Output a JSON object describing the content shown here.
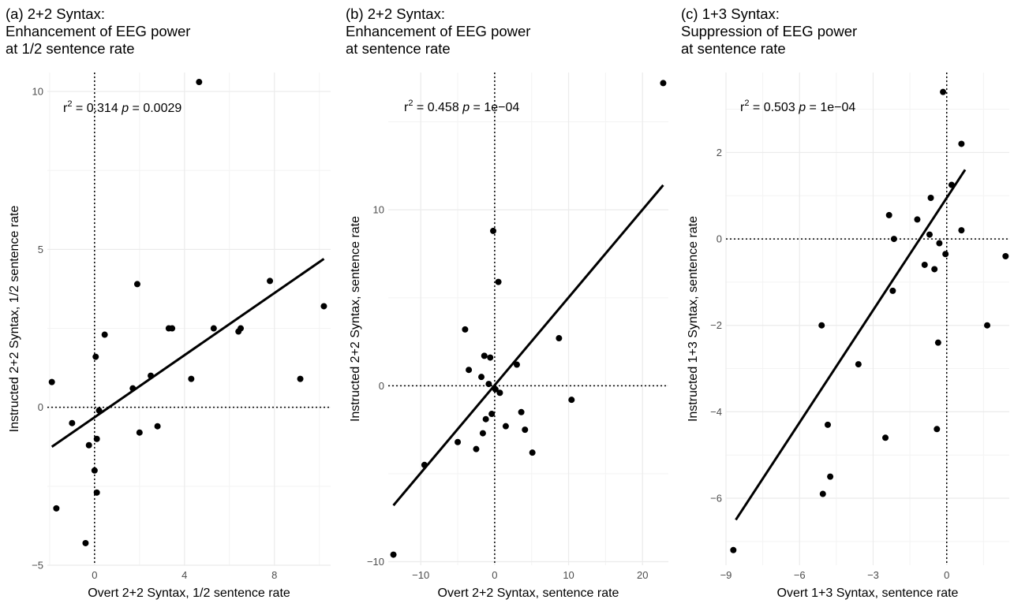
{
  "chart_data": [
    {
      "type": "scatter",
      "title": [
        "(a) 2+2 Syntax:",
        "Enhancement of EEG power",
        "at 1/2 sentence rate"
      ],
      "xlabel": "Overt 2+2 Syntax, 1/2 sentence rate",
      "ylabel": "Instructed 2+2 Syntax, 1/2 sentence rate",
      "stats": {
        "r2_prefix": "r",
        "r2_sup": "2",
        "r2_value": " = 0.314",
        "p_symbol": "p",
        "p_value": " = 0.0029"
      },
      "xlim": [
        -2.1,
        10.5
      ],
      "ylim": [
        -5.0,
        10.6
      ],
      "xticks": [
        0,
        4,
        8
      ],
      "xtick_labels": [
        "0",
        "4",
        "8"
      ],
      "yticks": [
        -5,
        0,
        5,
        10
      ],
      "ytick_labels": [
        "−5",
        "0",
        "5",
        "10"
      ],
      "reference_lines": {
        "x": 0,
        "y": 0
      },
      "regression_line": {
        "x": [
          -1.9,
          10.2
        ],
        "y": [
          -1.25,
          4.7
        ]
      },
      "points": [
        [
          -1.9,
          0.8
        ],
        [
          -1.7,
          -3.2
        ],
        [
          -1.0,
          -0.5
        ],
        [
          -0.4,
          -4.3
        ],
        [
          -0.25,
          -1.2
        ],
        [
          0.0,
          -2.0
        ],
        [
          0.05,
          1.6
        ],
        [
          0.1,
          -1.0
        ],
        [
          0.1,
          -2.7
        ],
        [
          0.2,
          -0.1
        ],
        [
          0.45,
          2.3
        ],
        [
          1.7,
          0.6
        ],
        [
          1.9,
          3.9
        ],
        [
          2.0,
          -0.8
        ],
        [
          2.5,
          1.0
        ],
        [
          2.8,
          -0.6
        ],
        [
          3.3,
          2.5
        ],
        [
          3.45,
          2.5
        ],
        [
          4.3,
          0.9
        ],
        [
          4.65,
          10.3
        ],
        [
          5.3,
          2.5
        ],
        [
          6.4,
          2.4
        ],
        [
          6.5,
          2.5
        ],
        [
          7.8,
          4.0
        ],
        [
          9.15,
          0.9
        ],
        [
          10.2,
          3.2
        ]
      ]
    },
    {
      "type": "scatter",
      "title": [
        "(b) 2+2 Syntax:",
        "Enhancement of EEG power",
        "at sentence rate"
      ],
      "xlabel": "Overt 2+2 Syntax, sentence rate",
      "ylabel": "Instructed 2+2 Syntax, sentence rate",
      "stats": {
        "r2_prefix": "r",
        "r2_sup": "2",
        "r2_value": " = 0.458",
        "p_symbol": "p",
        "p_value": " = 1e−04"
      },
      "xlim": [
        -14.4,
        23.5
      ],
      "ylim": [
        -10.2,
        17.8
      ],
      "xticks": [
        -10,
        0,
        10,
        20
      ],
      "xtick_labels": [
        "−10",
        "0",
        "10",
        "20"
      ],
      "yticks": [
        -10,
        0,
        10
      ],
      "ytick_labels": [
        "−10",
        "0",
        "10"
      ],
      "reference_lines": {
        "x": 0,
        "y": 0
      },
      "regression_line": {
        "x": [
          -13.7,
          22.8
        ],
        "y": [
          -6.8,
          11.4
        ]
      },
      "points": [
        [
          -13.7,
          -9.6
        ],
        [
          -9.5,
          -4.5
        ],
        [
          -5.0,
          -3.2
        ],
        [
          -4.0,
          3.2
        ],
        [
          -3.5,
          0.9
        ],
        [
          -2.5,
          -3.6
        ],
        [
          -1.8,
          0.5
        ],
        [
          -1.6,
          -2.7
        ],
        [
          -1.4,
          1.7
        ],
        [
          -1.2,
          -1.9
        ],
        [
          -0.8,
          0.1
        ],
        [
          -0.6,
          1.6
        ],
        [
          -0.4,
          -1.6
        ],
        [
          -0.2,
          8.8
        ],
        [
          0.1,
          -0.2
        ],
        [
          0.5,
          5.9
        ],
        [
          0.7,
          -0.4
        ],
        [
          1.5,
          -2.3
        ],
        [
          3.0,
          1.2
        ],
        [
          3.6,
          -1.5
        ],
        [
          4.1,
          -2.5
        ],
        [
          5.1,
          -3.8
        ],
        [
          8.7,
          2.7
        ],
        [
          10.4,
          -0.8
        ],
        [
          22.8,
          17.2
        ]
      ]
    },
    {
      "type": "scatter",
      "title": [
        "(c) 1+3 Syntax:",
        "Suppression of EEG power",
        "at sentence rate"
      ],
      "xlabel": "Overt 1+3 Syntax, sentence rate",
      "ylabel": "Instructed 1+3 Syntax, sentence rate",
      "stats": {
        "r2_prefix": "r",
        "r2_sup": "2",
        "r2_value": " = 0.503",
        "p_symbol": "p",
        "p_value": " = 1e−04"
      },
      "xlim": [
        -9.0,
        2.55
      ],
      "ylim": [
        -7.55,
        3.85
      ],
      "xticks": [
        -9,
        -6,
        -3,
        0
      ],
      "xtick_labels": [
        "−9",
        "−6",
        "−3",
        "0"
      ],
      "yticks": [
        -6,
        -4,
        -2,
        0,
        2
      ],
      "ytick_labels": [
        "−6",
        "−4",
        "−2",
        "0",
        "2"
      ],
      "reference_lines": {
        "x": 0,
        "y": 0
      },
      "regression_line": {
        "x": [
          -8.6,
          0.75
        ],
        "y": [
          -6.5,
          1.6
        ]
      },
      "points": [
        [
          -8.7,
          -7.2
        ],
        [
          -5.1,
          -2.0
        ],
        [
          -5.05,
          -5.9
        ],
        [
          -4.85,
          -4.3
        ],
        [
          -4.75,
          -5.5
        ],
        [
          -3.6,
          -2.9
        ],
        [
          -2.5,
          -4.6
        ],
        [
          -2.35,
          0.55
        ],
        [
          -2.2,
          -1.2
        ],
        [
          -2.15,
          0.0
        ],
        [
          -1.2,
          0.45
        ],
        [
          -0.9,
          -0.6
        ],
        [
          -0.7,
          0.1
        ],
        [
          -0.65,
          0.95
        ],
        [
          -0.5,
          -0.7
        ],
        [
          -0.4,
          -4.4
        ],
        [
          -0.35,
          -2.4
        ],
        [
          -0.3,
          -0.1
        ],
        [
          -0.15,
          3.4
        ],
        [
          -0.05,
          -0.35
        ],
        [
          0.2,
          1.25
        ],
        [
          0.6,
          2.2
        ],
        [
          0.6,
          0.2
        ],
        [
          1.65,
          -2.0
        ],
        [
          2.4,
          -0.4
        ]
      ]
    }
  ]
}
